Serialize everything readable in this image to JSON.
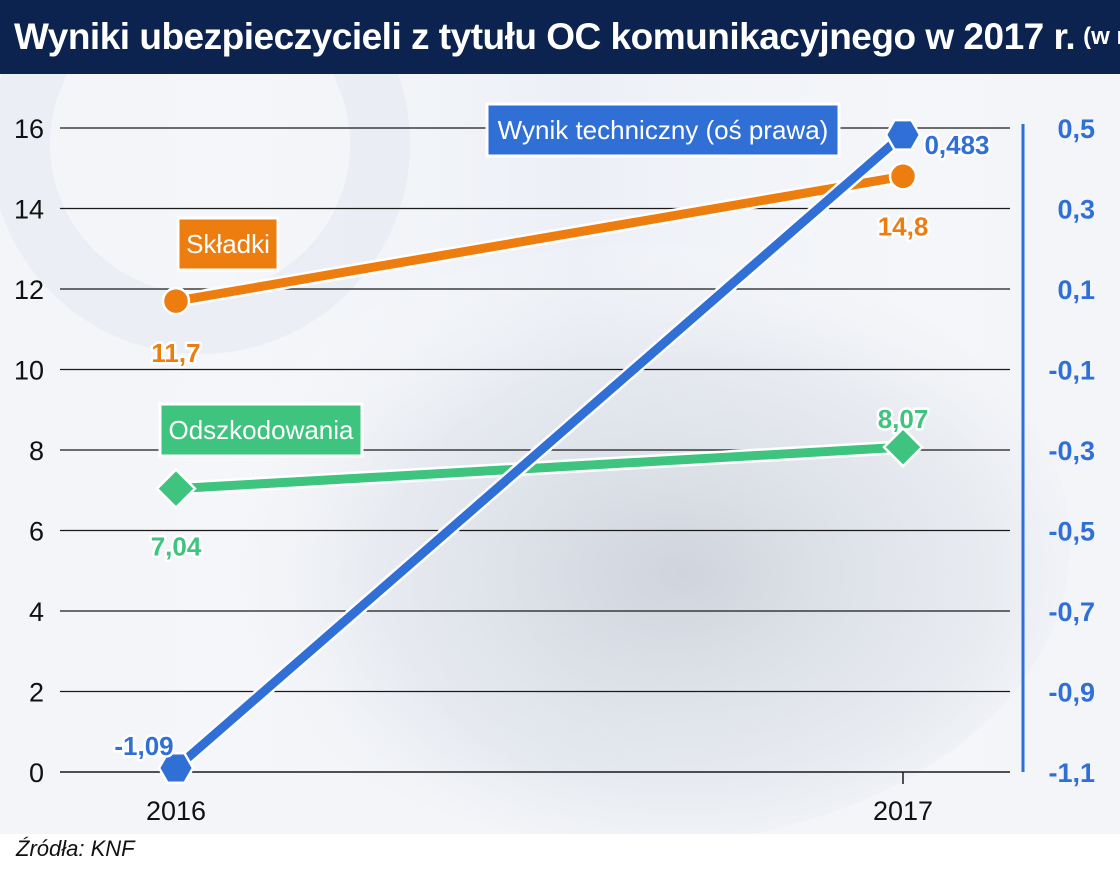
{
  "header": {
    "title": "Wyniki ubezpieczycieli z tytułu OC komunikacyjnego w 2017 r.",
    "unit": "(w mld zł)"
  },
  "source": "Źródła: KNF",
  "chart_data": {
    "type": "line",
    "title": "Wyniki ubezpieczycieli z tytułu OC komunikacyjnego w 2017 r.",
    "subtitle": "(w mld zł)",
    "categories": [
      "2016",
      "2017"
    ],
    "left_axis": {
      "ylim": [
        0,
        16
      ],
      "ticks": [
        "0",
        "2",
        "4",
        "6",
        "8",
        "10",
        "12",
        "14",
        "16"
      ]
    },
    "right_axis": {
      "ylim": [
        -1.1,
        0.5
      ],
      "ticks": [
        "-1,1",
        "-0,9",
        "-0,7",
        "-0,5",
        "-0,3",
        "-0,1",
        "0,1",
        "0,3",
        "0,5"
      ]
    },
    "grid": true,
    "series": [
      {
        "name": "Składki",
        "axis": "left",
        "values": [
          11.7,
          14.8
        ],
        "labels": [
          "11,7",
          "14,8"
        ],
        "color": "#ee7d10",
        "marker": "circle"
      },
      {
        "name": "Odszkodowania",
        "axis": "left",
        "values": [
          7.04,
          8.07
        ],
        "labels": [
          "7,04",
          "8,07"
        ],
        "color": "#3ec47f",
        "marker": "diamond"
      },
      {
        "name": "Wynik techniczny (oś prawa)",
        "axis": "right",
        "values": [
          -1.09,
          0.483
        ],
        "labels": [
          "-1,09",
          "0,483"
        ],
        "color": "#2f6fd6",
        "marker": "hexagon"
      }
    ]
  },
  "colors": {
    "header_bg": "#0c2350",
    "left_axis_text": "#111111",
    "right_axis_text": "#2f6fd6",
    "grid": "#1a1a1a"
  }
}
